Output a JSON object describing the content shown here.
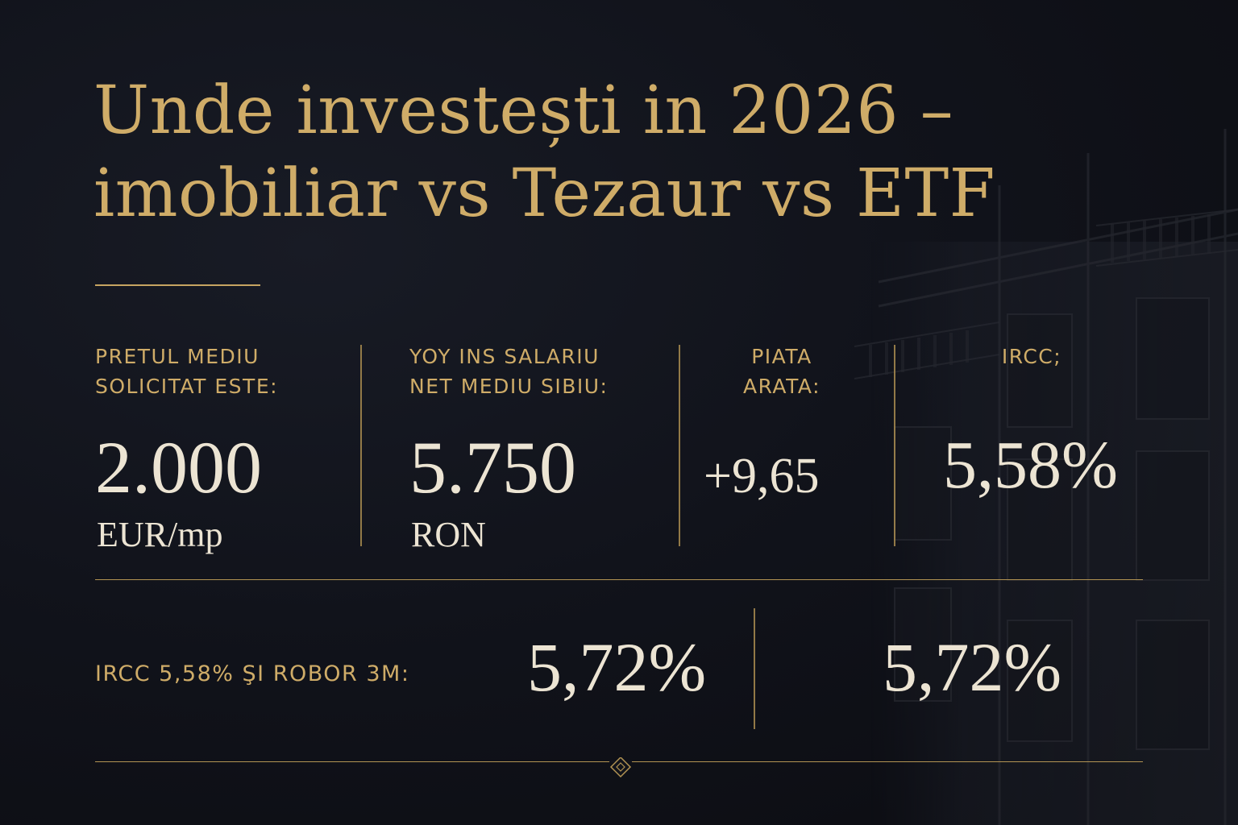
{
  "title": {
    "line1": "Unde investești in 2026 –",
    "line2": "imobiliar vs Tezaur vs ETF"
  },
  "stats": [
    {
      "label": "PRETUL MEDIU\nSOLICITAT ESTE:",
      "value": "2.000",
      "unit": "EUR/mp"
    },
    {
      "label": "YOY INS SALARIU\nNET MEDIU SIBIU:",
      "value": "5.750",
      "unit": "RON"
    },
    {
      "label": "PIATA\nARATA:",
      "value": "+9,65"
    },
    {
      "label": "IRCC;",
      "value": "5,58%"
    }
  ],
  "bottom": {
    "label": "IRCC 5,58% ŞI ROBOR 3M:",
    "value_left": "5,72%",
    "value_right": "5,72%"
  },
  "colors": {
    "accent_gold": "#cfac68",
    "value_text": "#ece4d3",
    "background": "#11131b"
  },
  "icons": [
    "building-illustration",
    "diamond-ornament-icon"
  ]
}
